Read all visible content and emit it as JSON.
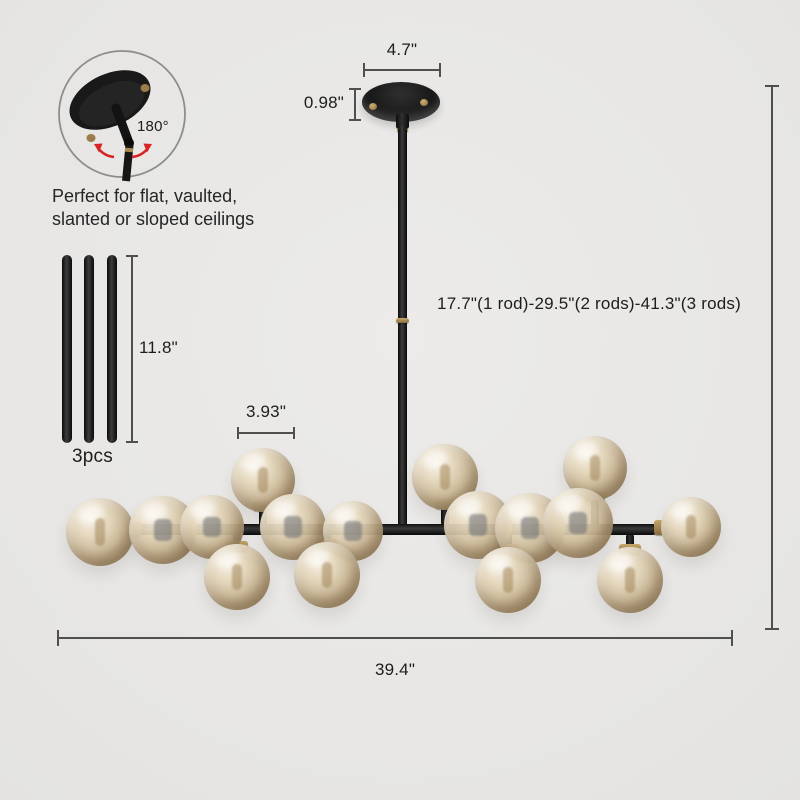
{
  "annotations": {
    "canopy_width": "4.7\"",
    "canopy_height": "0.98\"",
    "height_options": "17.7\"(1 rod)-29.5\"(2 rods)-41.3\"(3 rods)",
    "rod_length": "11.8\"",
    "rod_count": "3pcs",
    "globe_diameter": "3.93\"",
    "fixture_width": "39.4\"",
    "swivel_angle": "180°",
    "feature_line1": "Perfect for flat, vaulted,",
    "feature_line2": "slanted or sloped ceilings"
  },
  "colors": {
    "background": "#e9e8e6",
    "fixture_black": "#1a1a1a",
    "brass_accent": "#a0824c",
    "glass_amber": "#d9c7a7",
    "dimension_line": "#4f4f4f",
    "swivel_arrow_red": "#d92222",
    "text": "#1d1d1d"
  },
  "icons": {
    "swivel_canopy": "tilted-ceiling-canopy",
    "swivel_arrows": "curved-double-arrow"
  }
}
